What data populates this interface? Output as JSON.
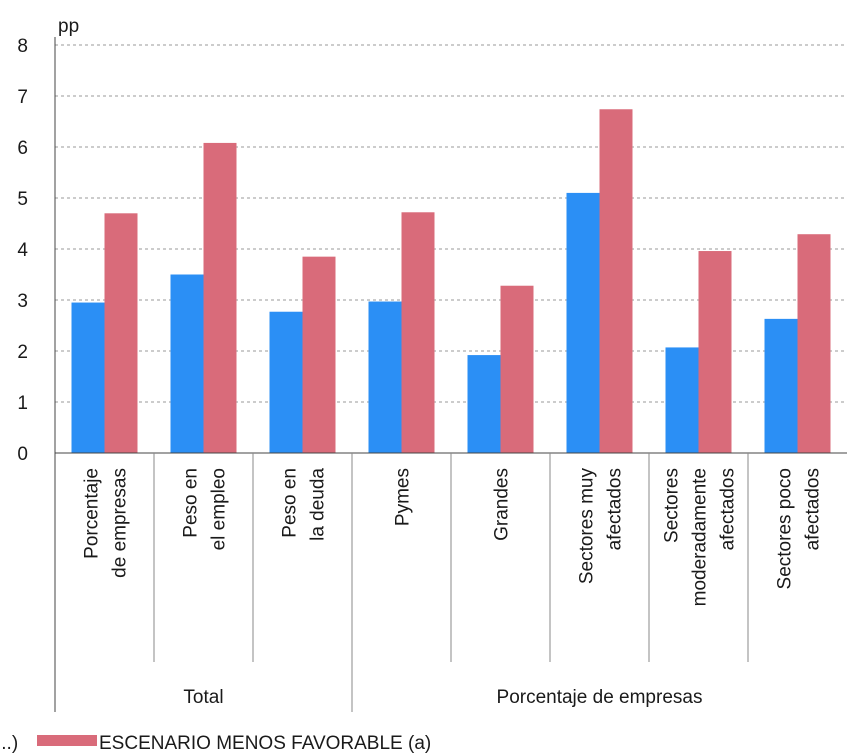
{
  "chart_data": {
    "type": "bar",
    "ylabel": "pp",
    "ylim": [
      0,
      8
    ],
    "yticks": [
      "0",
      "1",
      "2",
      "3",
      "4",
      "5",
      "6",
      "7",
      "8"
    ],
    "grid": true,
    "categories": [
      [
        "Porcentaje",
        "de empresas"
      ],
      [
        "Peso en",
        "el empleo"
      ],
      [
        "Peso en",
        "la deuda"
      ],
      [
        "Pymes"
      ],
      [
        "Grandes"
      ],
      [
        "Sectores muy",
        "afectados"
      ],
      [
        "Sectores",
        "moderadamente",
        "afectados"
      ],
      [
        "Sectores poco",
        "afectados"
      ]
    ],
    "groups": [
      {
        "label": "Total",
        "categories": [
          0,
          1,
          2
        ]
      },
      {
        "label": "Porcentaje de empresas",
        "categories": [
          3,
          4,
          5,
          6,
          7
        ]
      }
    ],
    "series": [
      {
        "name": "",
        "color": "#2b8ff5",
        "values": [
          2.95,
          3.5,
          2.77,
          2.97,
          1.92,
          5.1,
          2.07,
          2.63
        ]
      },
      {
        "name": "ESCENARIO MENOS FAVORABLE (a)",
        "color": "#d96b7a",
        "values": [
          4.7,
          6.08,
          3.85,
          4.72,
          3.28,
          6.74,
          3.96,
          4.29
        ]
      }
    ],
    "legend": {
      "placement": "bottom",
      "items": [
        {
          "text": "...)",
          "color": ""
        },
        {
          "text": "ESCENARIO MENOS FAVORABLE (a)",
          "color": "#d96b7a"
        }
      ]
    }
  }
}
